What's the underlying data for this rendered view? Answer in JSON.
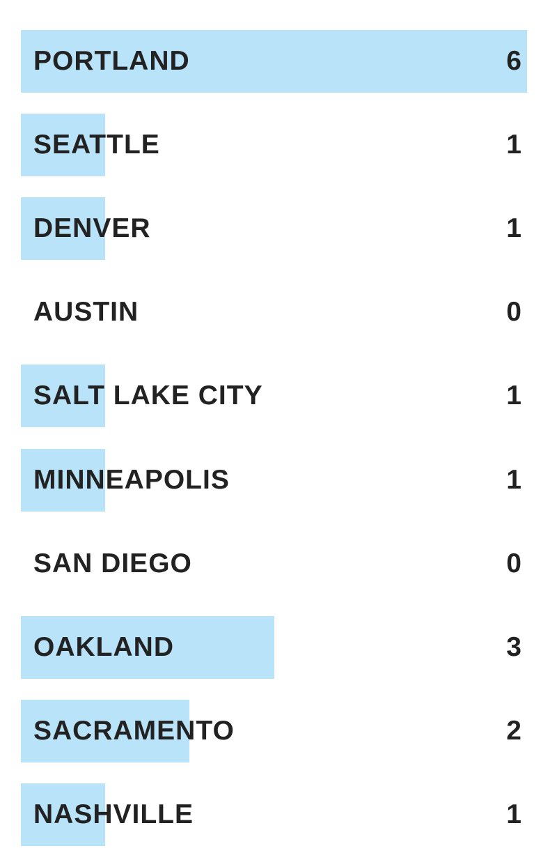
{
  "chart_data": {
    "type": "bar",
    "orientation": "horizontal",
    "categories": [
      "PORTLAND",
      "SEATTLE",
      "DENVER",
      "AUSTIN",
      "SALT LAKE CITY",
      "MINNEAPOLIS",
      "SAN DIEGO",
      "OAKLAND",
      "SACRAMENTO",
      "NASHVILLE"
    ],
    "values": [
      6,
      1,
      1,
      0,
      1,
      1,
      0,
      3,
      2,
      1
    ],
    "xlim": [
      0,
      6
    ],
    "grid": false,
    "bar_color": "#b9e3f8",
    "text_color": "#222222"
  }
}
